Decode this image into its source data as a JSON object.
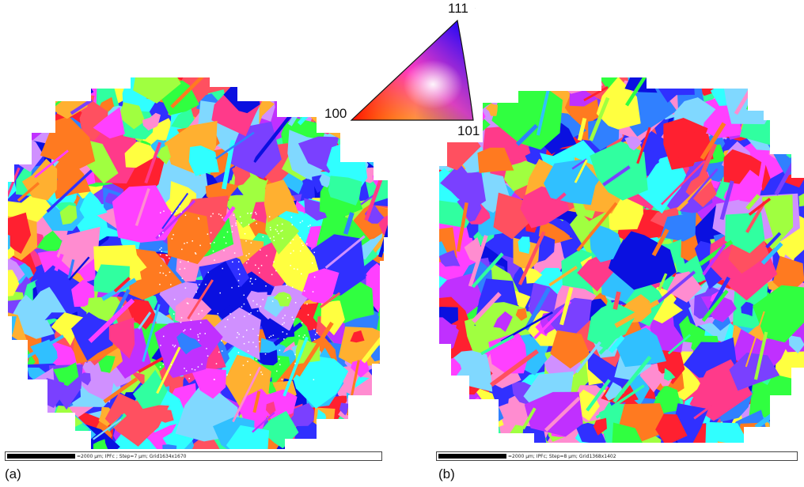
{
  "figure": {
    "panels": [
      {
        "label": "(a)",
        "caption": "=2000 µm; IPFc ; Step=7 µm; Grid1634x1670"
      },
      {
        "label": "(b)",
        "caption": "=2000 µm; IPFc; Step=8 µm; Grid1368x1402"
      }
    ],
    "key": {
      "corner_100": "100",
      "corner_111": "111",
      "corner_101": "101"
    }
  },
  "colors": {
    "grain_palette": [
      "#ff2030",
      "#ff3a8a",
      "#ff40ff",
      "#c030ff",
      "#7a40ff",
      "#3030ff",
      "#0a10e0",
      "#3080ff",
      "#30c0ff",
      "#30ffff",
      "#30ffa0",
      "#30ff40",
      "#a0ff40",
      "#ffff40",
      "#ffb030",
      "#ff7a20",
      "#ff8cd0",
      "#d090ff",
      "#80d8ff",
      "#ff5060"
    ]
  }
}
